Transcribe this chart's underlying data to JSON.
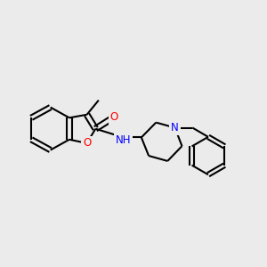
{
  "bg_color": "#ebebeb",
  "bond_color": "#000000",
  "bond_width": 1.5,
  "atom_colors": {
    "O": "#ff0000",
    "N": "#0000ff",
    "C": "#000000"
  },
  "font_size": 8.5
}
